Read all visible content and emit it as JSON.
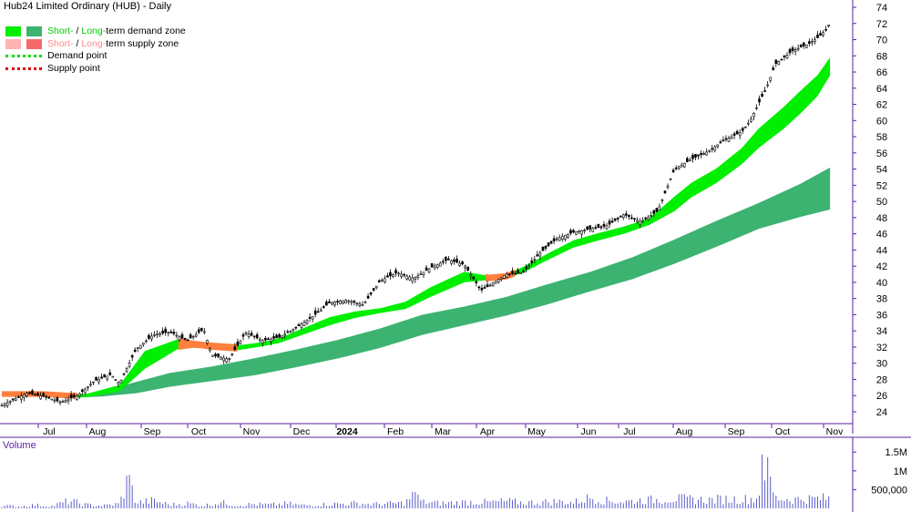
{
  "title": "Hub24 Limited Ordinary (HUB) - Daily",
  "legend": {
    "short": "Short-",
    "separator": " / ",
    "long": "Long-",
    "demand_zone": "term demand zone",
    "supply_zone": "term supply zone",
    "demand_point": "Demand point",
    "supply_point": "Supply point"
  },
  "colors": {
    "short_demand": "#00ee00",
    "long_demand": "#3cb371",
    "short_supply": "#ffb3b3",
    "long_supply": "#f46a6a",
    "volume": "#5a5acb",
    "axis_purple": "#5a1fa6"
  },
  "volume_title": "Volume",
  "chart_data": [
    {
      "type": "line",
      "subtype": "candlestick-with-bands",
      "title": "Hub24 Limited Ordinary (HUB) - Daily",
      "y_axis": {
        "side": "right",
        "ylim": [
          22,
          75
        ],
        "ticks": [
          24,
          26,
          28,
          30,
          32,
          34,
          36,
          38,
          40,
          42,
          44,
          46,
          48,
          50,
          52,
          54,
          56,
          58,
          60,
          62,
          64,
          66,
          68,
          70,
          72,
          74
        ]
      },
      "x_axis": {
        "tick_labels": [
          "Jul",
          "Aug",
          "Sep",
          "Oct",
          "Nov",
          "Dec",
          "2024",
          "Feb",
          "Mar",
          "Apr",
          "May",
          "Jun",
          "Jul",
          "Aug",
          "Sep",
          "Oct",
          "Nov"
        ],
        "xlim": [
          0,
          100
        ]
      },
      "grid": false,
      "legend_placement": "top-left",
      "series": [
        {
          "name": "Short-term zone",
          "role": "short-band",
          "x": [
            0,
            5,
            8,
            10,
            14,
            17,
            21,
            23,
            25,
            28,
            31,
            33,
            36,
            39,
            42,
            45,
            48,
            51,
            55,
            58,
            60,
            62,
            65,
            68,
            71,
            74,
            77,
            80,
            82,
            85,
            88,
            90,
            93,
            95,
            97,
            98.5
          ],
          "upper": [
            26.4,
            26.4,
            26.2,
            26.2,
            27.3,
            31.5,
            33.0,
            32.6,
            32.4,
            32.2,
            32.6,
            33.1,
            34.4,
            35.7,
            36.4,
            36.8,
            37.6,
            39.4,
            41.3,
            40.8,
            41.0,
            41.9,
            43.6,
            45.2,
            46.1,
            46.9,
            47.9,
            50.6,
            52.3,
            54.1,
            56.6,
            59.0,
            61.7,
            63.7,
            65.6,
            67.8
          ],
          "lower": [
            26.0,
            26.0,
            25.8,
            25.8,
            26.5,
            29.3,
            31.8,
            32.1,
            31.8,
            31.6,
            32.1,
            32.5,
            33.6,
            34.7,
            35.6,
            36.2,
            36.7,
            38.2,
            40.0,
            40.3,
            40.5,
            41.2,
            42.8,
            44.3,
            45.2,
            46.0,
            47.1,
            48.8,
            50.5,
            52.3,
            54.6,
            56.6,
            59.0,
            60.9,
            63.0,
            65.6
          ],
          "supply_segments": [
            [
              0,
              9
            ],
            [
              21,
              28
            ],
            [
              57.5,
              61
            ]
          ]
        },
        {
          "name": "Long-term zone",
          "role": "long-band",
          "x": [
            8,
            12,
            16,
            20,
            25,
            30,
            35,
            40,
            45,
            50,
            55,
            60,
            65,
            70,
            75,
            80,
            85,
            90,
            95,
            98.5
          ],
          "upper": [
            25.9,
            26.5,
            27.7,
            28.8,
            29.6,
            30.6,
            31.7,
            32.9,
            34.3,
            36.0,
            37.0,
            38.2,
            39.8,
            41.3,
            43.1,
            45.3,
            47.6,
            49.8,
            52.2,
            54.2
          ],
          "lower": [
            25.7,
            25.9,
            26.3,
            27.1,
            27.8,
            28.5,
            29.5,
            30.6,
            31.9,
            33.5,
            34.7,
            35.9,
            37.3,
            38.9,
            40.4,
            42.3,
            44.4,
            46.6,
            48.1,
            49.0
          ]
        },
        {
          "name": "Price",
          "role": "candles",
          "x": [
            0,
            3,
            5,
            7,
            9,
            11,
            13,
            14,
            16,
            18,
            20,
            22,
            24,
            25,
            27,
            29,
            31,
            33,
            35,
            37,
            39,
            41,
            43,
            45,
            47,
            49,
            51,
            53,
            55,
            57,
            58,
            60,
            62,
            64,
            66,
            68,
            70,
            72,
            74,
            76,
            78,
            80,
            82,
            84,
            86,
            88,
            89,
            91,
            92,
            94,
            96,
            97,
            98,
            98.5
          ],
          "y": [
            24.8,
            26.3,
            25.9,
            25.2,
            26.0,
            27.8,
            28.6,
            27.5,
            31.8,
            33.5,
            33.9,
            32.8,
            34.2,
            31.0,
            30.5,
            33.8,
            32.8,
            33.2,
            34.4,
            35.8,
            37.5,
            37.8,
            37.2,
            40.2,
            41.2,
            40.5,
            41.8,
            42.8,
            42.2,
            39.0,
            39.6,
            41.0,
            41.2,
            43.6,
            45.4,
            46.2,
            46.6,
            47.0,
            48.4,
            47.5,
            48.8,
            54.0,
            55.2,
            56.2,
            57.6,
            58.6,
            60.0,
            64.2,
            67.0,
            68.6,
            69.5,
            70.2,
            71.2,
            72.1
          ]
        }
      ]
    },
    {
      "type": "bar",
      "title": "Volume",
      "y_axis": {
        "ylim": [
          0,
          1700000
        ],
        "ticks": [
          500000,
          1000000,
          1500000
        ],
        "tick_labels": [
          "500,000",
          "1M",
          "1.5M"
        ]
      },
      "x": [
        0,
        2,
        4,
        6,
        8,
        10,
        12,
        14,
        15,
        16,
        18,
        20,
        22,
        24,
        26,
        28,
        30,
        32,
        34,
        36,
        38,
        40,
        42,
        44,
        46,
        48,
        49,
        50,
        52,
        54,
        56,
        58,
        60,
        62,
        64,
        66,
        68,
        70,
        72,
        74,
        76,
        78,
        80,
        82,
        84,
        86,
        88,
        90,
        90.5,
        92,
        94,
        96,
        98
      ],
      "values": [
        90000,
        70000,
        110000,
        80000,
        250000,
        120000,
        90000,
        150000,
        1000000,
        180000,
        260000,
        120000,
        170000,
        90000,
        200000,
        110000,
        140000,
        120000,
        160000,
        100000,
        130000,
        150000,
        170000,
        140000,
        160000,
        180000,
        480000,
        210000,
        170000,
        190000,
        220000,
        200000,
        240000,
        190000,
        210000,
        230000,
        200000,
        360000,
        250000,
        220000,
        270000,
        290000,
        320000,
        300000,
        280000,
        310000,
        300000,
        330000,
        1650000,
        340000,
        300000,
        320000,
        330000
      ]
    }
  ]
}
